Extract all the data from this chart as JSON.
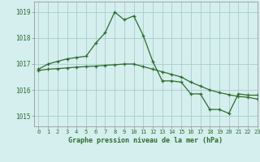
{
  "series1_x": [
    0,
    1,
    2,
    3,
    4,
    5,
    6,
    7,
    8,
    9,
    10,
    11,
    12,
    13,
    14,
    15,
    16,
    17,
    18,
    19,
    20,
    21,
    22,
    23
  ],
  "series1_y": [
    1016.8,
    1017.0,
    1017.1,
    1017.2,
    1017.25,
    1017.3,
    1017.8,
    1018.2,
    1019.0,
    1018.7,
    1018.85,
    1018.1,
    1017.1,
    1016.35,
    1016.35,
    1016.3,
    1015.85,
    1015.85,
    1015.25,
    1015.25,
    1015.1,
    1015.85,
    1015.8,
    1015.8
  ],
  "series2_x": [
    0,
    1,
    2,
    3,
    4,
    5,
    6,
    7,
    8,
    9,
    10,
    11,
    12,
    13,
    14,
    15,
    16,
    17,
    18,
    19,
    20,
    21,
    22,
    23
  ],
  "series2_y": [
    1016.75,
    1016.8,
    1016.82,
    1016.85,
    1016.88,
    1016.9,
    1016.92,
    1016.95,
    1016.97,
    1017.0,
    1017.0,
    1016.9,
    1016.8,
    1016.7,
    1016.6,
    1016.5,
    1016.3,
    1016.15,
    1016.0,
    1015.9,
    1015.82,
    1015.75,
    1015.72,
    1015.65
  ],
  "line_color": "#2d6e2d",
  "bg_color": "#d5eeee",
  "grid_color": "#aacccc",
  "xlabel": "Graphe pression niveau de la mer (hPa)",
  "ylim_min": 1014.6,
  "ylim_max": 1019.4,
  "xlim_min": -0.5,
  "xlim_max": 23.0,
  "yticks": [
    1015,
    1016,
    1017,
    1018,
    1019
  ],
  "xticks": [
    0,
    1,
    2,
    3,
    4,
    5,
    6,
    7,
    8,
    9,
    10,
    11,
    12,
    13,
    14,
    15,
    16,
    17,
    18,
    19,
    20,
    21,
    22,
    23
  ]
}
